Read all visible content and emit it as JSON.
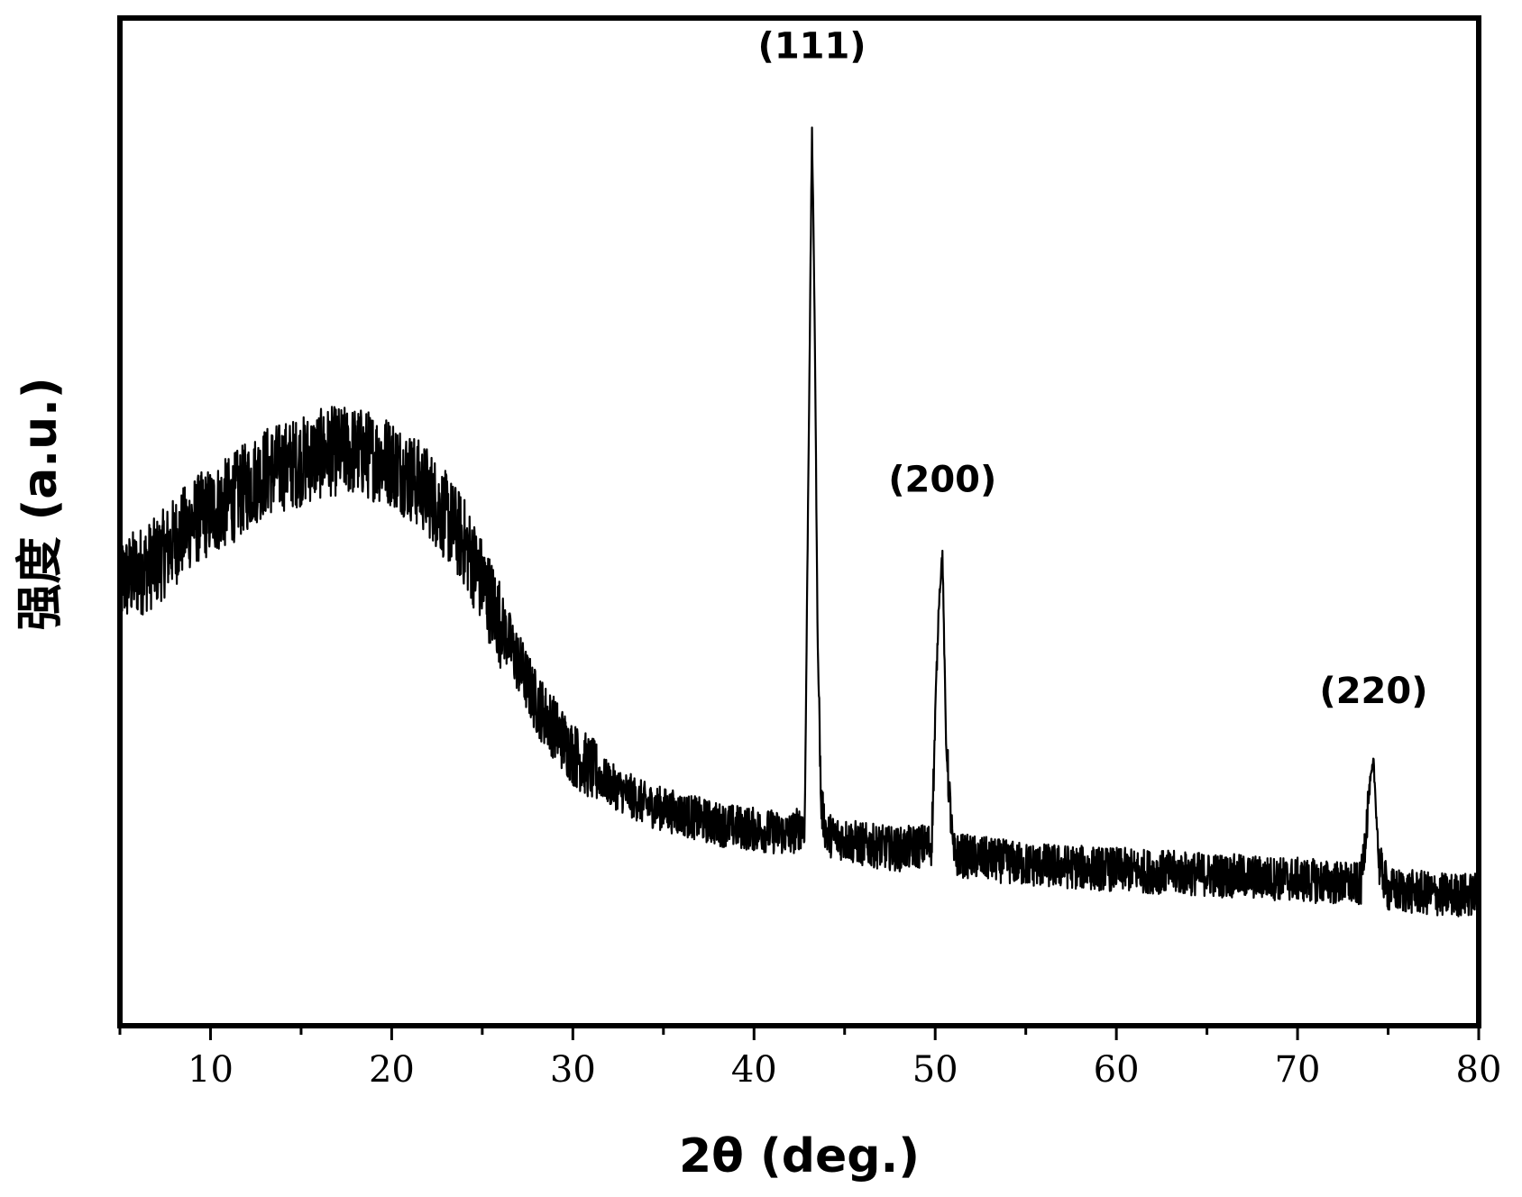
{
  "chart_data": {
    "type": "line",
    "title": "",
    "xlabel": "2θ (deg.)",
    "ylabel": "强度 (a.u.)",
    "xlim": [
      5,
      80
    ],
    "ylim": [
      0,
      100
    ],
    "x_ticks": [
      10,
      20,
      30,
      40,
      50,
      60,
      70,
      80
    ],
    "x_tick_labels": [
      "10",
      "20",
      "30",
      "40",
      "50",
      "60",
      "70",
      "80"
    ],
    "y_ticks_shown": false,
    "grid": false,
    "legend": "none",
    "line_color": "#000000",
    "series": [
      {
        "x": [
          5,
          7,
          9,
          11,
          13,
          15,
          16.5,
          18,
          20,
          22,
          24,
          26,
          28,
          30,
          32,
          34,
          36,
          38,
          40,
          42,
          42.8,
          43.0,
          43.2,
          43.35,
          43.5,
          43.7,
          44,
          46,
          48,
          49.8,
          50.2,
          50.4,
          50.6,
          51,
          53,
          55,
          60,
          65,
          70,
          73.5,
          74.0,
          74.2,
          74.5,
          75,
          78,
          80
        ],
        "y": [
          44,
          46,
          50,
          52,
          55,
          56,
          57,
          57,
          56,
          53,
          48,
          40,
          32,
          27,
          24,
          22,
          21,
          20,
          19.5,
          19,
          20,
          55,
          89,
          70,
          40,
          22,
          19,
          18,
          17.5,
          18,
          42,
          47,
          28,
          17,
          16.5,
          16,
          15.5,
          15,
          14.5,
          14,
          24,
          26,
          16,
          13.5,
          13,
          13
        ]
      }
    ],
    "annotations": [
      {
        "text": "(111)",
        "x": 43.2,
        "y": 96
      },
      {
        "text": "(200)",
        "x": 50.4,
        "y": 53
      },
      {
        "text": "(220)",
        "x": 74.2,
        "y": 32
      }
    ]
  }
}
